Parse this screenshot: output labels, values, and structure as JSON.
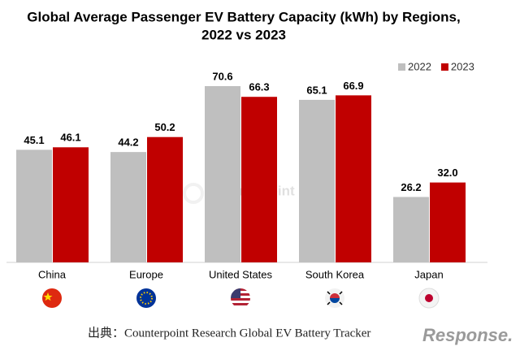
{
  "chart_data": {
    "type": "bar",
    "title": [
      "Global Average Passenger EV Battery Capacity (kWh) by Regions,",
      "2022 vs 2023"
    ],
    "categories": [
      "China",
      "Europe",
      "United States",
      "South Korea",
      "Japan"
    ],
    "series": [
      {
        "name": "2022",
        "color": "#bfbfbf",
        "values": [
          45.1,
          44.2,
          70.6,
          65.1,
          26.2
        ],
        "value_labels": [
          "45.1",
          "44.2",
          "70.6",
          "65.1",
          "26.2"
        ]
      },
      {
        "name": "2023",
        "color": "#c00000",
        "values": [
          46.1,
          50.2,
          66.3,
          66.9,
          32.0
        ],
        "value_labels": [
          "46.1",
          "50.2",
          "66.3",
          "66.9",
          "32.0"
        ]
      }
    ],
    "legend": "top-right",
    "watermark": "Counterpoint",
    "source": "出典：Counterpoint Research Global EV Battery Tracker",
    "logo": "Response."
  }
}
